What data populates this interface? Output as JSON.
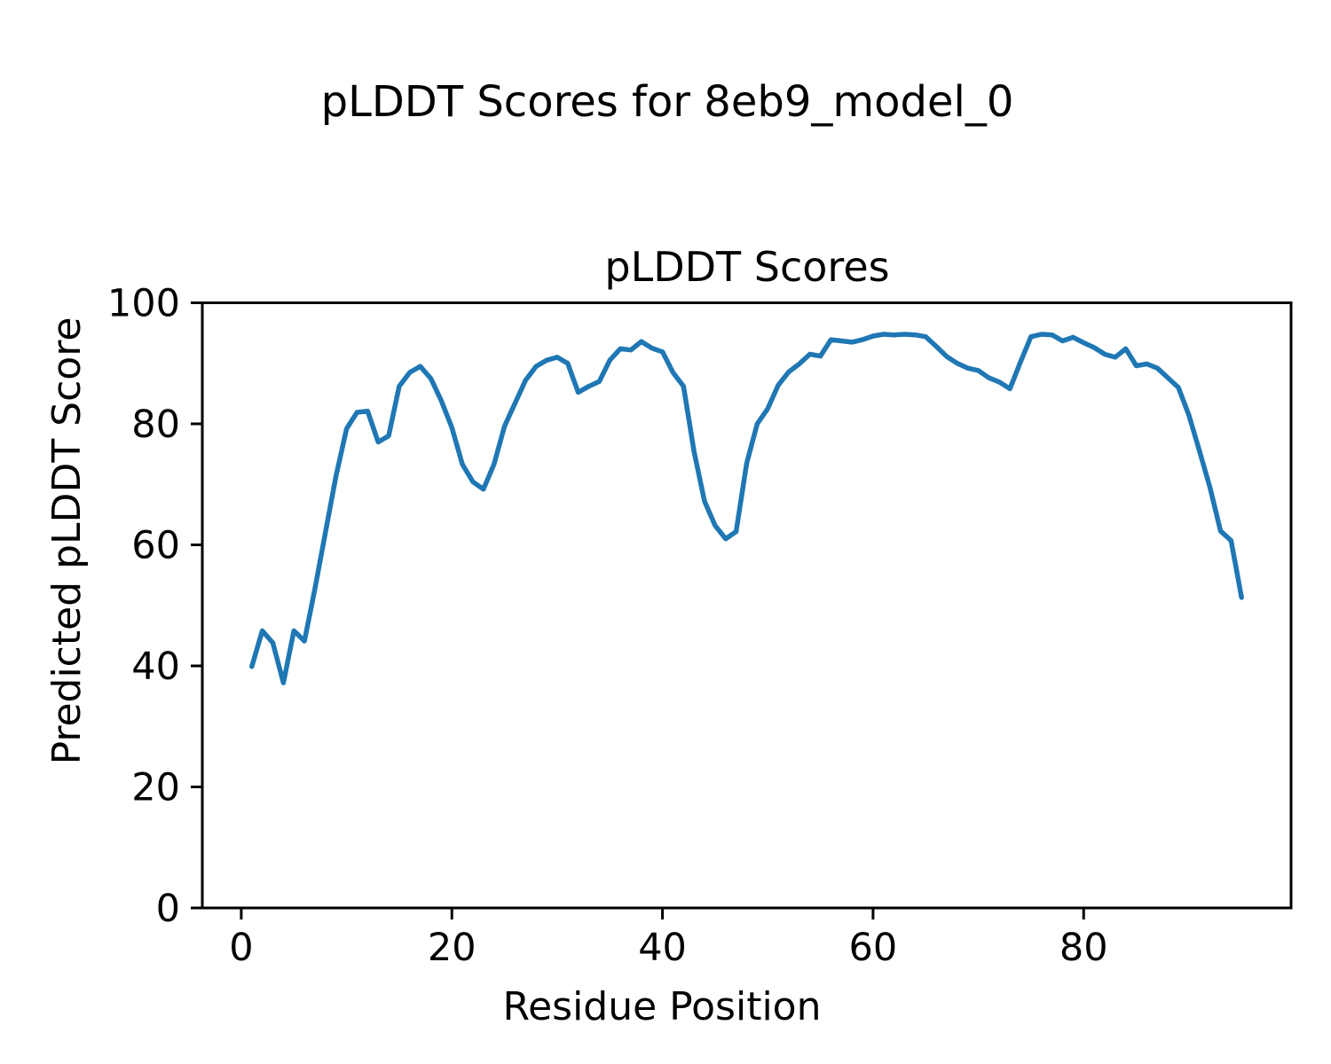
{
  "suptitle": "pLDDT Scores for 8eb9_model_0",
  "chart_data": {
    "type": "line",
    "title": "pLDDT Scores",
    "xlabel": "Residue Position",
    "ylabel": "Predicted pLDDT Score",
    "line_color": "#1f77b4",
    "axis_color": "#000000",
    "background_color": "#ffffff",
    "grid": false,
    "legend": "none",
    "xlim": [
      -3.7,
      99.7
    ],
    "ylim": [
      0,
      100
    ],
    "x_ticks": [
      0,
      20,
      40,
      60,
      80
    ],
    "y_ticks": [
      0,
      20,
      40,
      60,
      80,
      100
    ],
    "n_points": 95,
    "x_start": 1,
    "x_step": 1,
    "series": [
      {
        "name": "pLDDT",
        "values": [
          39.9,
          45.8,
          43.8,
          37.2,
          45.8,
          44.1,
          52.8,
          62.1,
          71.4,
          79.2,
          81.9,
          82.1,
          77.0,
          78.0,
          86.2,
          88.5,
          89.5,
          87.5,
          83.8,
          79.4,
          73.3,
          70.4,
          69.2,
          73.3,
          79.6,
          83.4,
          87.2,
          89.5,
          90.5,
          91.0,
          90.0,
          85.2,
          86.2,
          87.0,
          90.5,
          92.4,
          92.2,
          93.6,
          92.5,
          91.9,
          88.5,
          86.2,
          75.4,
          67.2,
          63.2,
          61.0,
          62.2,
          73.5,
          80.0,
          82.5,
          86.4,
          88.6,
          89.9,
          91.5,
          91.2,
          93.9,
          93.7,
          93.5,
          93.9,
          94.5,
          94.8,
          94.7,
          94.8,
          94.7,
          94.4,
          92.8,
          91.1,
          90.0,
          89.2,
          88.8,
          87.6,
          86.9,
          85.8,
          90.2,
          94.4,
          94.8,
          94.7,
          93.7,
          94.3,
          93.4,
          92.6,
          91.5,
          91.0,
          92.4,
          89.6,
          89.9,
          89.2,
          87.6,
          86.0,
          81.4,
          75.5,
          69.5,
          62.3,
          60.7,
          51.3
        ]
      }
    ]
  }
}
